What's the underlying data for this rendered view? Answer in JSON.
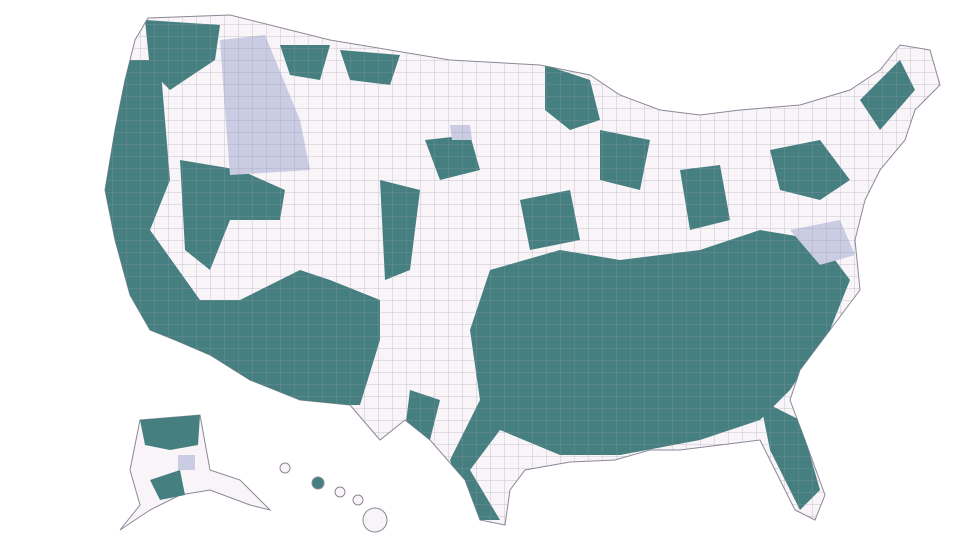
{
  "map": {
    "colors": {
      "background": "#ffffff",
      "category_teal": "#457f80",
      "category_light": "#f9f4f8",
      "category_lavender": "#c9cce3",
      "county_border": "#9a98a6"
    },
    "regions_shown": [
      "contiguous-us",
      "alaska",
      "hawaii"
    ]
  }
}
